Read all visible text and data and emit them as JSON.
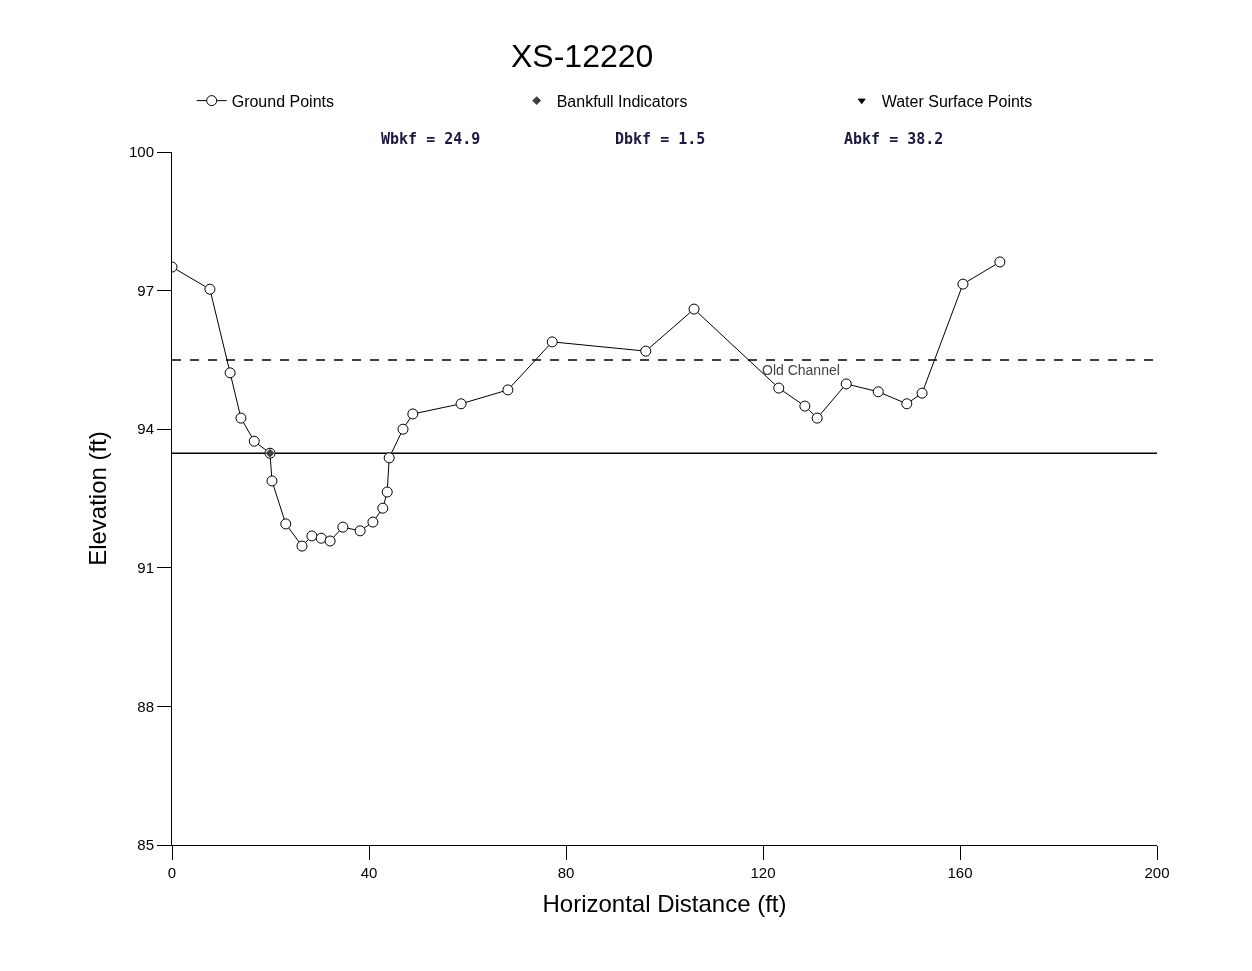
{
  "chart_data": {
    "type": "line",
    "title": "XS-12220",
    "xlabel": "Horizontal Distance (ft)",
    "ylabel": "Elevation (ft)",
    "xlim": [
      0,
      200
    ],
    "xticks": [
      0,
      40,
      80,
      120,
      160,
      200
    ],
    "ylim": [
      85,
      100
    ],
    "yticks": [
      85,
      88,
      91,
      94,
      97,
      100
    ],
    "grid": false,
    "legend": "top",
    "series": [
      {
        "name": "Ground Points",
        "color": "#000000",
        "marker": "circle",
        "x": [
          0,
          7.7,
          11.8,
          14.0,
          16.7,
          19.9,
          20.3,
          23.1,
          26.4,
          28.4,
          30.3,
          32.1,
          34.7,
          38.2,
          40.8,
          42.8,
          43.7,
          44.1,
          46.9,
          48.9,
          58.7,
          68.2,
          77.2,
          96.2,
          106.0,
          123.2,
          128.5,
          131.0,
          136.9,
          143.4,
          149.2,
          152.3,
          160.6,
          168.1
        ],
        "values": [
          97.51,
          97.03,
          95.22,
          94.24,
          93.74,
          93.48,
          92.88,
          91.95,
          91.47,
          91.69,
          91.64,
          91.58,
          91.88,
          91.8,
          91.99,
          92.29,
          92.64,
          93.38,
          94.0,
          94.33,
          94.55,
          94.85,
          95.89,
          95.69,
          96.6,
          94.89,
          94.5,
          94.24,
          94.98,
          94.81,
          94.55,
          94.78,
          97.14,
          97.62
        ]
      },
      {
        "name": "Bankfull Indicators",
        "type": "scatter",
        "color": "#404040",
        "marker": "diamond",
        "x": [
          19.9
        ],
        "values": [
          93.48
        ]
      },
      {
        "name": "Water Surface Points",
        "type": "scatter",
        "color": "#000000",
        "marker": "triangle"
      }
    ],
    "ref_lines": [
      {
        "axis": "y",
        "value": 95.5,
        "label": "Old Channel",
        "line_style": "dashed",
        "color": "#000000"
      },
      {
        "axis": "y",
        "value": 93.48,
        "label": null,
        "line_style": "solid",
        "color": "#000000"
      }
    ],
    "annotations": [
      "Wbkf = 24.9",
      "Dbkf = 1.5",
      "Abkf = 38.2"
    ]
  }
}
